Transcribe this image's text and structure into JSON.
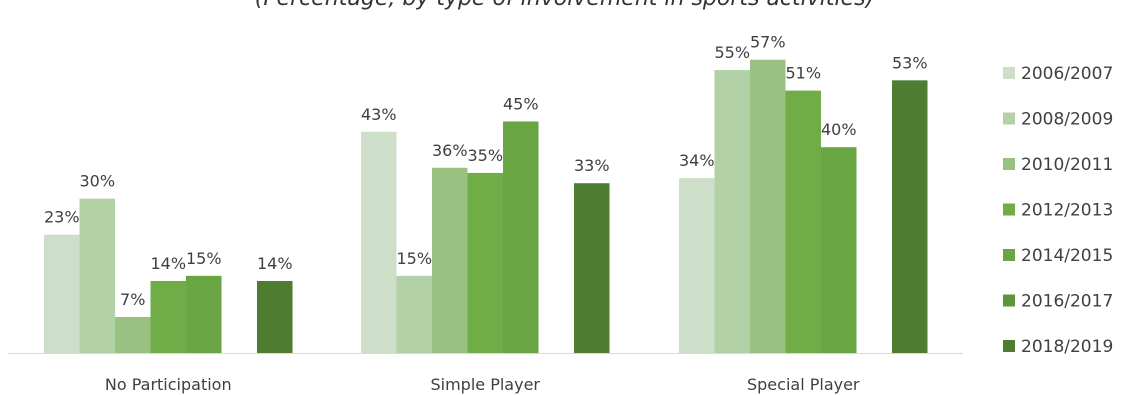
{
  "chart_data": {
    "type": "bar",
    "title": "(Percentage, by type of involvement in sports activities)",
    "categories": [
      "No Participation",
      "Simple Player",
      "Special Player"
    ],
    "series": [
      {
        "name": "2006/2007",
        "color": "#cddfc8",
        "values": [
          23,
          43,
          34
        ],
        "labels": [
          "23%",
          "43%",
          "34%"
        ]
      },
      {
        "name": "2008/2009",
        "color": "#b2d1a6",
        "values": [
          30,
          15,
          55
        ],
        "labels": [
          "30%",
          "15%",
          "55%"
        ]
      },
      {
        "name": "2010/2011",
        "color": "#98c182",
        "values": [
          7,
          36,
          57
        ],
        "labels": [
          "7%",
          "36%",
          "57%"
        ]
      },
      {
        "name": "2012/2013",
        "color": "#70ad47",
        "values": [
          14,
          35,
          51
        ],
        "labels": [
          "14%",
          "35%",
          "51%"
        ]
      },
      {
        "name": "2014/2015",
        "color": "#6aa543",
        "values": [
          15,
          45,
          40
        ],
        "labels": [
          "15%",
          "45%",
          "40%"
        ]
      },
      {
        "name": "2016/2017",
        "color": "#5c963b",
        "values": [
          null,
          null,
          null
        ],
        "labels": [
          "",
          "",
          ""
        ]
      },
      {
        "name": "2018/2019",
        "color": "#4e7d31",
        "values": [
          14,
          33,
          53
        ],
        "labels": [
          "14%",
          "33%",
          "53%"
        ]
      }
    ],
    "ylim": [
      0,
      60
    ],
    "grid": false,
    "legend_position": "right"
  }
}
